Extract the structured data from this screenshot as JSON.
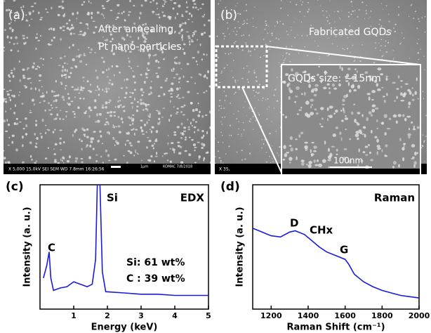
{
  "panels": [
    {
      "label": "(a)",
      "text": [
        "After annealing,",
        "Pt nano-particles."
      ],
      "footer": "X 5,000     15.0kV SEI      SEM      WD 7.8mm  16:26:56",
      "scale": "1μm",
      "stamp": "KOMAC   7/8/2018"
    },
    {
      "label": "(b)",
      "text": [
        "Fabricated GQDs"
      ],
      "footer": "X 35,",
      "inset_text": "GQDs size: ∼15nm",
      "inset_scale": "100nm"
    }
  ],
  "chart_data": [
    {
      "type": "line",
      "panel_label": "(c)",
      "title": "EDX",
      "xlabel": "Energy (keV)",
      "ylabel": "Intensity (a. u.)",
      "annotations": [
        "Si",
        "C",
        "Si: 61 wt%",
        "C : 39 wt%"
      ],
      "x": [
        0.1,
        0.2,
        0.27,
        0.32,
        0.4,
        0.6,
        0.8,
        1.0,
        1.2,
        1.4,
        1.55,
        1.65,
        1.7,
        1.78,
        1.85,
        1.95,
        2.5,
        3,
        3.5,
        4,
        4.5,
        5
      ],
      "values": [
        25,
        35,
        46,
        25,
        15,
        17,
        18,
        22,
        20,
        18,
        20,
        40,
        100,
        100,
        30,
        14,
        13,
        12,
        12,
        11,
        11,
        11
      ],
      "color": "#1a1adb",
      "xlim": [
        0,
        5
      ],
      "ylim": [
        0,
        100
      ],
      "xticks": [
        1,
        2,
        3,
        4,
        5
      ]
    },
    {
      "type": "line",
      "panel_label": "(d)",
      "title": "Raman",
      "xlabel": "Raman Shift (cm⁻¹)",
      "ylabel": "Intensity (a. u.)",
      "annotations": [
        "D",
        "CHx",
        "G"
      ],
      "x": [
        1100,
        1150,
        1200,
        1250,
        1300,
        1330,
        1380,
        1420,
        1460,
        1500,
        1550,
        1600,
        1620,
        1650,
        1700,
        1750,
        1800,
        1850,
        1900,
        1950,
        2000
      ],
      "values": [
        65,
        62,
        59,
        58,
        62,
        63,
        60,
        55,
        50,
        46,
        43,
        40,
        36,
        28,
        22,
        18,
        15,
        13,
        11,
        10,
        9
      ],
      "color": "#1a1adb",
      "xlim": [
        1100,
        2000
      ],
      "ylim": [
        0,
        100
      ],
      "xticks": [
        1200,
        1400,
        1600,
        1800,
        2000
      ]
    }
  ]
}
